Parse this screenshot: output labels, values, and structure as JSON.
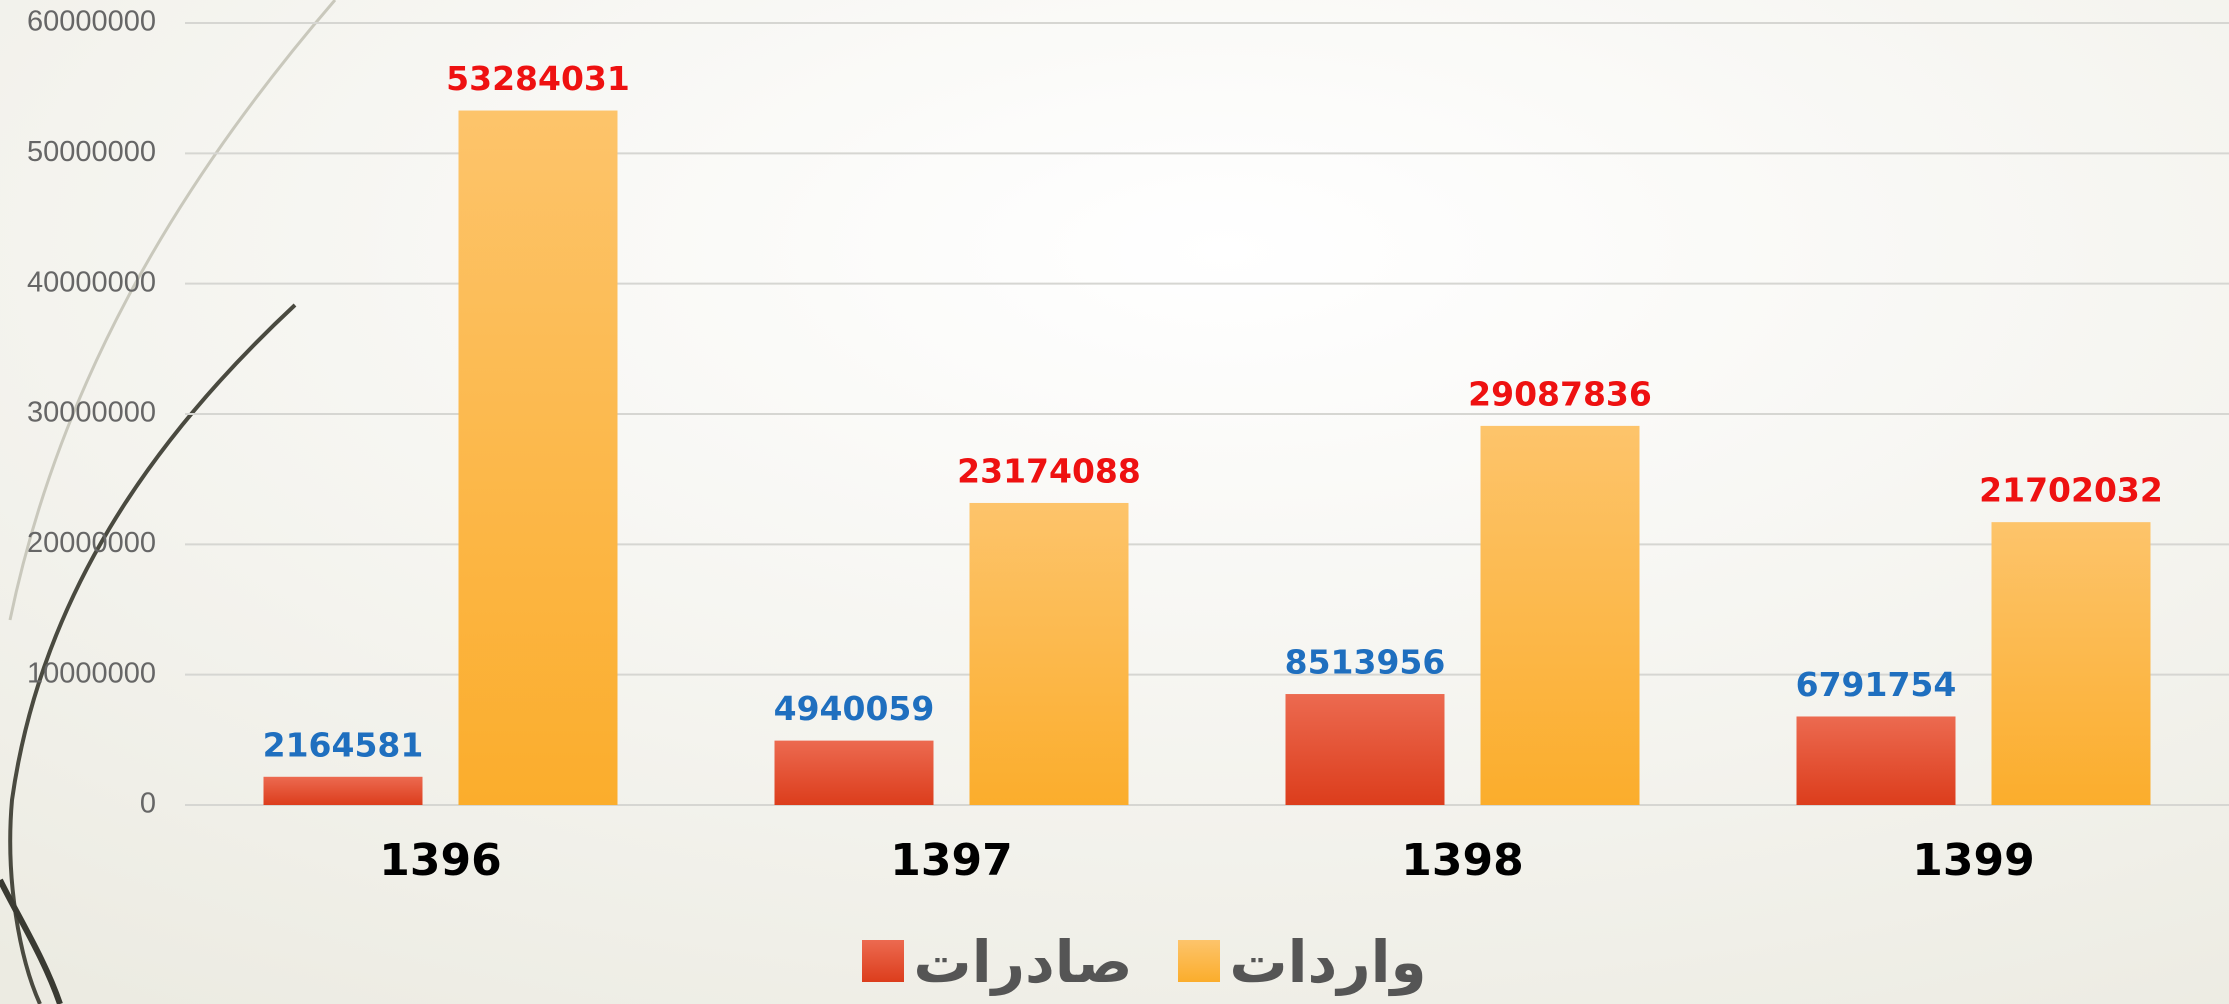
{
  "chart_data": {
    "type": "bar",
    "categories": [
      "1396",
      "1397",
      "1398",
      "1399"
    ],
    "series": [
      {
        "name": "صادرات",
        "color": "#e2492a",
        "label_color": "#1f6fbf",
        "values": [
          2164581,
          4940059,
          8513956,
          6791754
        ]
      },
      {
        "name": "واردات",
        "color": "#fbb034",
        "label_color": "#ee1111",
        "values": [
          53284031,
          23174088,
          29087836,
          21702032
        ]
      }
    ],
    "ylim": [
      0,
      60000000
    ],
    "yticks": [
      0,
      10000000,
      20000000,
      30000000,
      40000000,
      50000000,
      60000000
    ],
    "grid": true,
    "legend": "bottom"
  }
}
